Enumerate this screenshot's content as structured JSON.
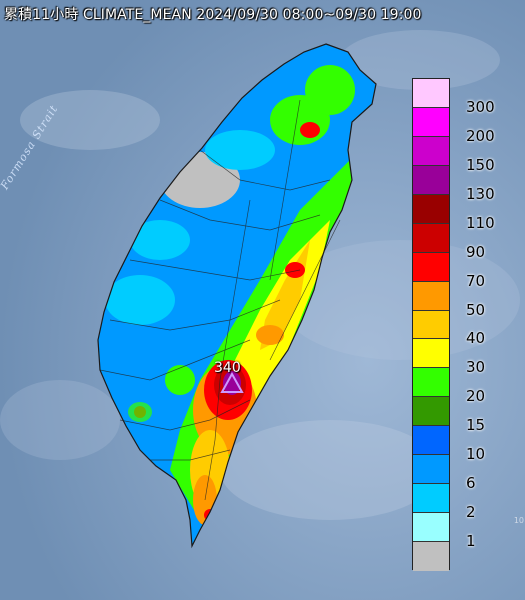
{
  "map": {
    "title": "累積11小時 CLIMATE_MEAN 2024/09/30 08:00~09/30 19:00",
    "sea_label": "Formosa Strait",
    "max_value_label": "340",
    "edge_fragment": "10",
    "colors": {
      "sea": "#7f9fc0",
      "land_outline": "#1a1a1a"
    }
  },
  "legend": {
    "levels": [
      {
        "label": "300",
        "color": "#ffc8ff"
      },
      {
        "label": "200",
        "color": "#ff00ff"
      },
      {
        "label": "150",
        "color": "#cc00cc"
      },
      {
        "label": "130",
        "color": "#990099"
      },
      {
        "label": "110",
        "color": "#990000"
      },
      {
        "label": "90",
        "color": "#cc0000"
      },
      {
        "label": "70",
        "color": "#ff0000"
      },
      {
        "label": "50",
        "color": "#ff9900"
      },
      {
        "label": "40",
        "color": "#ffcc00"
      },
      {
        "label": "30",
        "color": "#ffff00"
      },
      {
        "label": "20",
        "color": "#33ff00"
      },
      {
        "label": "15",
        "color": "#339900"
      },
      {
        "label": "10",
        "color": "#0066ff"
      },
      {
        "label": "6",
        "color": "#0099ff"
      },
      {
        "label": "2",
        "color": "#00ccff"
      },
      {
        "label": "1",
        "color": "#99ffff"
      },
      {
        "label": "",
        "color": "#c0c0c0"
      }
    ]
  }
}
